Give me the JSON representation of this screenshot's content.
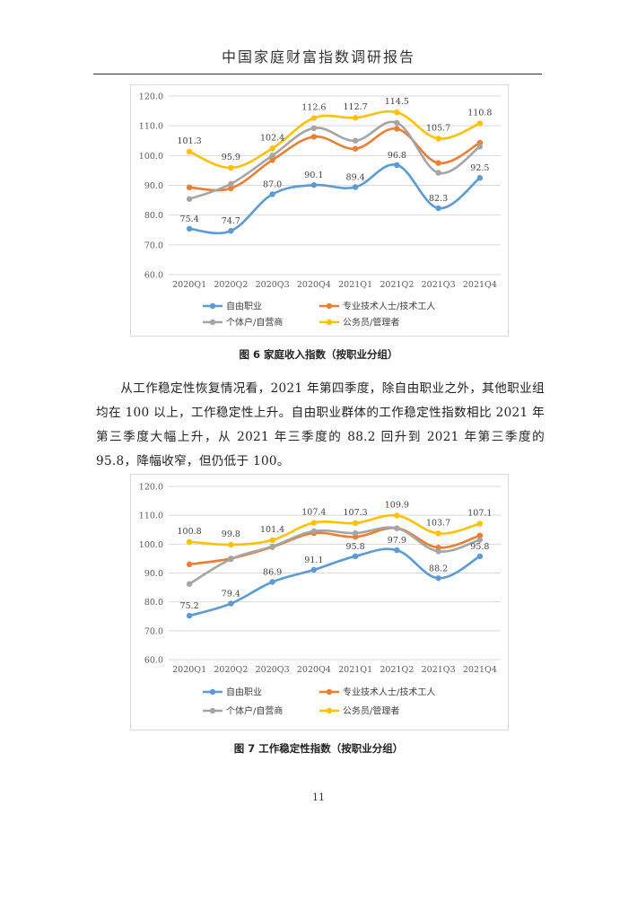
{
  "header": {
    "title": "中国家庭财富指数调研报告"
  },
  "figures": [
    {
      "caption": "图 6  家庭收入指数（按职业分组）"
    },
    {
      "caption": "图 7  工作稳定性指数（按职业分组）"
    }
  ],
  "body": {
    "paragraph": "从工作稳定性恢复情况看，2021 年第四季度，除自由职业之外，其他职业组均在 100 以上，工作稳定性上升。自由职业群体的工作稳定性指数相比 2021 年第三季度大幅上升，从 2021 年三季度的 88.2 回升到 2021 年第三季度的 95.8，降幅收窄，但仍低于 100。"
  },
  "page_number": "11",
  "chart_data": [
    {
      "type": "line",
      "title": "",
      "xlabel": "",
      "ylabel": "",
      "categories": [
        "2020Q1",
        "2020Q2",
        "2020Q3",
        "2020Q4",
        "2021Q1",
        "2021Q2",
        "2021Q3",
        "2021Q4"
      ],
      "ylim": [
        60,
        120
      ],
      "yticks": [
        "60.0",
        "70.0",
        "80.0",
        "90.0",
        "100.0",
        "110.0",
        "120.0"
      ],
      "grid": true,
      "legend_position": "bottom",
      "series": [
        {
          "name": "自由职业",
          "color": "#5B9BD5",
          "values": [
            75.4,
            74.7,
            87.0,
            90.1,
            89.4,
            96.8,
            82.3,
            92.5
          ],
          "labels": [
            "75.4",
            "74.7",
            "87.0",
            "90.1",
            "89.4",
            "96.8",
            "82.3",
            "92.5"
          ]
        },
        {
          "name": "专业技术人士/技术工人",
          "color": "#ED7D31",
          "values": [
            89.3,
            89.0,
            98.5,
            106.3,
            102.3,
            109.0,
            97.5,
            104.3
          ],
          "labels": null
        },
        {
          "name": "个体户/自营商",
          "color": "#A5A5A5",
          "values": [
            85.4,
            90.5,
            100.0,
            109.2,
            105.0,
            111.0,
            94.2,
            103.0
          ],
          "labels": null
        },
        {
          "name": "公务员/管理者",
          "color": "#FFC000",
          "values": [
            101.3,
            95.9,
            102.4,
            112.6,
            112.7,
            114.5,
            105.7,
            110.8
          ],
          "labels": [
            "101.3",
            "95.9",
            "102.4",
            "112.6",
            "112.7",
            "114.5",
            "105.7",
            "110.8"
          ]
        }
      ]
    },
    {
      "type": "line",
      "title": "",
      "xlabel": "",
      "ylabel": "",
      "categories": [
        "2020Q1",
        "2020Q2",
        "2020Q3",
        "2020Q4",
        "2021Q1",
        "2021Q2",
        "2021Q3",
        "2021Q4"
      ],
      "ylim": [
        60,
        120
      ],
      "yticks": [
        "60.0",
        "70.0",
        "80.0",
        "90.0",
        "100.0",
        "110.0",
        "120.0"
      ],
      "grid": true,
      "legend_position": "bottom",
      "series": [
        {
          "name": "自由职业",
          "color": "#5B9BD5",
          "values": [
            75.2,
            79.4,
            86.9,
            91.1,
            95.8,
            97.9,
            88.2,
            95.8
          ],
          "labels": [
            "75.2",
            "79.4",
            "86.9",
            "91.1",
            "95.8",
            "97.9",
            "88.2",
            "95.8"
          ]
        },
        {
          "name": "专业技术人士/技术工人",
          "color": "#ED7D31",
          "values": [
            93.0,
            95.0,
            99.0,
            103.8,
            102.5,
            105.5,
            98.8,
            103.0
          ],
          "labels": null
        },
        {
          "name": "个体户/自营商",
          "color": "#A5A5A5",
          "values": [
            86.2,
            94.8,
            99.2,
            104.5,
            103.8,
            105.5,
            97.5,
            101.5
          ],
          "labels": null
        },
        {
          "name": "公务员/管理者",
          "color": "#FFC000",
          "values": [
            100.8,
            99.8,
            101.4,
            107.4,
            107.3,
            109.9,
            103.7,
            107.1
          ],
          "labels": [
            "100.8",
            "99.8",
            "101.4",
            "107.4",
            "107.3",
            "109.9",
            "103.7",
            "107.1"
          ]
        }
      ]
    }
  ]
}
